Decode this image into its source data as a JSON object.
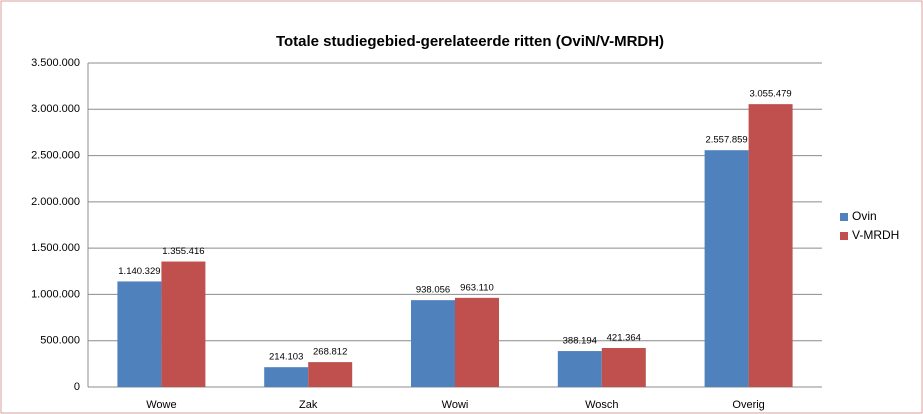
{
  "chart_data": {
    "type": "bar",
    "title": "Totale studiegebied-gerelateerde ritten (OviN/V-MRDH)",
    "categories": [
      "Wowe",
      "Zak",
      "Wowi",
      "Wosch",
      "Overig"
    ],
    "series": [
      {
        "name": "Ovin",
        "color": "#4f81bd",
        "values": [
          1140329,
          214103,
          938056,
          388194,
          2557859
        ],
        "value_labels": [
          "1.140.329",
          "214.103",
          "938.056",
          "388.194",
          "2.557.859"
        ]
      },
      {
        "name": "V-MRDH",
        "color": "#c0504d",
        "values": [
          1355416,
          268812,
          963110,
          421364,
          3055479
        ],
        "value_labels": [
          "1.355.416",
          "268.812",
          "963.110",
          "421.364",
          "3.055.479"
        ]
      }
    ],
    "ylim": [
      0,
      3500000
    ],
    "yticks": [
      0,
      {
        "value": 500000,
        "label": "500.000"
      },
      {
        "value": 1000000,
        "label": "1.000.000"
      },
      {
        "value": 1500000,
        "label": "1.500.000"
      },
      {
        "value": 2000000,
        "label": "2.000.000"
      },
      {
        "value": 2500000,
        "label": "2.500.000"
      },
      {
        "value": 3000000,
        "label": "3.000.000"
      },
      {
        "value": 3500000,
        "label": "3.500.000"
      }
    ],
    "grid": true,
    "legend": "right"
  }
}
